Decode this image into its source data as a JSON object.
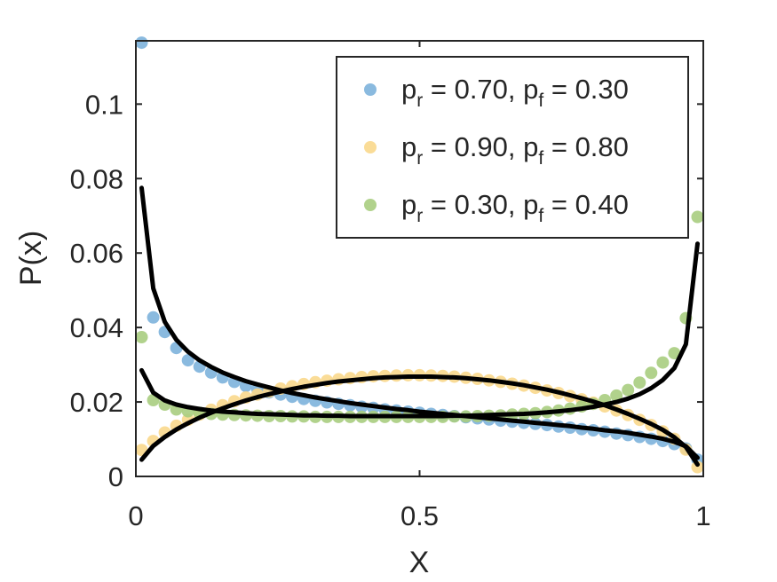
{
  "chart_data": {
    "type": "scatter",
    "xlabel": "X",
    "ylabel": "P(x)",
    "xlim": [
      0,
      1
    ],
    "ylim": [
      0,
      0.117
    ],
    "xticks": [
      "0",
      "0.5",
      "1"
    ],
    "yticks": [
      "0",
      "0.02",
      "0.04",
      "0.06",
      "0.08",
      "0.1"
    ],
    "legend_position": "top-right",
    "series": [
      {
        "legend": {
          "pr": "r",
          "pr_val": " = 0.70, p",
          "pf": "f",
          "pf_val": " = 0.30"
        },
        "color": "#7DB2DB",
        "x": [
          0.0102,
          0.0306,
          0.051,
          0.0714,
          0.0918,
          0.1122,
          0.1327,
          0.1531,
          0.1735,
          0.1939,
          0.2143,
          0.2347,
          0.2551,
          0.2755,
          0.2959,
          0.3163,
          0.3367,
          0.3571,
          0.3776,
          0.398,
          0.4184,
          0.4388,
          0.4592,
          0.4796,
          0.5,
          0.5204,
          0.5408,
          0.5612,
          0.5816,
          0.602,
          0.6224,
          0.6429,
          0.6633,
          0.6837,
          0.7041,
          0.7245,
          0.7449,
          0.7653,
          0.7857,
          0.8061,
          0.8265,
          0.8469,
          0.8673,
          0.8878,
          0.9082,
          0.9286,
          0.949,
          0.9694,
          0.9898
        ],
        "y": [
          0.1165,
          0.0427,
          0.0388,
          0.0345,
          0.0312,
          0.0295,
          0.0279,
          0.0266,
          0.0254,
          0.0243,
          0.0234,
          0.0226,
          0.022,
          0.0214,
          0.0208,
          0.0203,
          0.0199,
          0.0195,
          0.0191,
          0.0187,
          0.0184,
          0.018,
          0.0177,
          0.0174,
          0.0171,
          0.0168,
          0.0165,
          0.0162,
          0.0159,
          0.0156,
          0.0153,
          0.015,
          0.0147,
          0.0144,
          0.0141,
          0.0138,
          0.0134,
          0.0131,
          0.0127,
          0.0124,
          0.012,
          0.0115,
          0.0111,
          0.0106,
          0.0101,
          0.0095,
          0.0087,
          0.0075,
          0.0045
        ]
      },
      {
        "legend": {
          "pr": "r",
          "pr_val": " = 0.90, p",
          "pf": "f",
          "pf_val": " = 0.80"
        },
        "color": "#F9D88C",
        "x": [
          0.0102,
          0.0306,
          0.051,
          0.0714,
          0.0918,
          0.1122,
          0.1327,
          0.1531,
          0.1735,
          0.1939,
          0.2143,
          0.2347,
          0.2551,
          0.2755,
          0.2959,
          0.3163,
          0.3367,
          0.3571,
          0.3776,
          0.398,
          0.4184,
          0.4388,
          0.4592,
          0.4796,
          0.5,
          0.5204,
          0.5408,
          0.5612,
          0.5816,
          0.602,
          0.6224,
          0.6429,
          0.6633,
          0.6837,
          0.7041,
          0.7245,
          0.7449,
          0.7653,
          0.7857,
          0.8061,
          0.8265,
          0.8469,
          0.8673,
          0.8878,
          0.9082,
          0.9286,
          0.949,
          0.9694,
          0.9898
        ],
        "y": [
          0.0071,
          0.0095,
          0.0118,
          0.0136,
          0.0152,
          0.0166,
          0.0179,
          0.0191,
          0.0202,
          0.0212,
          0.022,
          0.0228,
          0.0236,
          0.0242,
          0.0248,
          0.0253,
          0.0257,
          0.0261,
          0.0264,
          0.0267,
          0.0269,
          0.027,
          0.0271,
          0.0272,
          0.0272,
          0.0271,
          0.027,
          0.0268,
          0.0265,
          0.0262,
          0.0258,
          0.0254,
          0.0249,
          0.0244,
          0.0238,
          0.0231,
          0.0224,
          0.0216,
          0.0207,
          0.0198,
          0.0188,
          0.0177,
          0.0165,
          0.0152,
          0.0138,
          0.0121,
          0.0101,
          0.0072,
          0.0025
        ]
      },
      {
        "legend": {
          "pr": "r",
          "pr_val": " = 0.30, p",
          "pf": "f",
          "pf_val": " = 0.40"
        },
        "color": "#A9CD80",
        "x": [
          0.0102,
          0.0306,
          0.051,
          0.0714,
          0.0918,
          0.1122,
          0.1327,
          0.1531,
          0.1735,
          0.1939,
          0.2143,
          0.2347,
          0.2551,
          0.2755,
          0.2959,
          0.3163,
          0.3367,
          0.3571,
          0.3776,
          0.398,
          0.4184,
          0.4388,
          0.4592,
          0.4796,
          0.5,
          0.5204,
          0.5408,
          0.5612,
          0.5816,
          0.602,
          0.6224,
          0.6429,
          0.6633,
          0.6837,
          0.7041,
          0.7245,
          0.7449,
          0.7653,
          0.7857,
          0.8061,
          0.8265,
          0.8469,
          0.8673,
          0.8878,
          0.9082,
          0.9286,
          0.949,
          0.9694,
          0.9898
        ],
        "y": [
          0.0374,
          0.0205,
          0.0193,
          0.018,
          0.0175,
          0.0171,
          0.0168,
          0.0166,
          0.0165,
          0.0164,
          0.0163,
          0.0162,
          0.0162,
          0.0161,
          0.0161,
          0.016,
          0.016,
          0.016,
          0.016,
          0.016,
          0.016,
          0.016,
          0.016,
          0.016,
          0.016,
          0.016,
          0.016,
          0.0161,
          0.0161,
          0.0162,
          0.0163,
          0.0164,
          0.0166,
          0.0168,
          0.017,
          0.0173,
          0.0177,
          0.0182,
          0.0188,
          0.0195,
          0.0205,
          0.0217,
          0.0232,
          0.0252,
          0.0278,
          0.0306,
          0.0331,
          0.0425,
          0.0697
        ]
      }
    ],
    "fit_curves": [
      {
        "x": [
          0.0102,
          0.0306,
          0.051,
          0.0714,
          0.0918,
          0.1122,
          0.1327,
          0.1531,
          0.1735,
          0.1939,
          0.2143,
          0.2347,
          0.2551,
          0.2755,
          0.2959,
          0.3163,
          0.3367,
          0.3571,
          0.3776,
          0.398,
          0.4184,
          0.4388,
          0.4592,
          0.4796,
          0.5,
          0.5204,
          0.5408,
          0.5612,
          0.5816,
          0.602,
          0.6224,
          0.6429,
          0.6633,
          0.6837,
          0.7041,
          0.7245,
          0.7449,
          0.7653,
          0.7857,
          0.8061,
          0.8265,
          0.8469,
          0.8673,
          0.8878,
          0.9082,
          0.9286,
          0.949,
          0.9694,
          0.9898
        ],
        "y": [
          0.0775,
          0.0505,
          0.0415,
          0.0367,
          0.0335,
          0.0312,
          0.0294,
          0.0279,
          0.0267,
          0.0256,
          0.0247,
          0.0239,
          0.0231,
          0.0224,
          0.0218,
          0.0212,
          0.0207,
          0.0202,
          0.0197,
          0.0193,
          0.0189,
          0.0185,
          0.0181,
          0.0178,
          0.0174,
          0.0171,
          0.0168,
          0.0165,
          0.0162,
          0.0159,
          0.0156,
          0.0153,
          0.015,
          0.0147,
          0.0144,
          0.0141,
          0.0138,
          0.0135,
          0.0131,
          0.0128,
          0.0124,
          0.0121,
          0.0117,
          0.0112,
          0.0107,
          0.0101,
          0.0093,
          0.0081,
          0.005
        ]
      },
      {
        "x": [
          0.0102,
          0.0306,
          0.051,
          0.0714,
          0.0918,
          0.1122,
          0.1327,
          0.1531,
          0.1735,
          0.1939,
          0.2143,
          0.2347,
          0.2551,
          0.2755,
          0.2959,
          0.3163,
          0.3367,
          0.3571,
          0.3776,
          0.398,
          0.4184,
          0.4388,
          0.4592,
          0.4796,
          0.5,
          0.5204,
          0.5408,
          0.5612,
          0.5816,
          0.602,
          0.6224,
          0.6429,
          0.6633,
          0.6837,
          0.7041,
          0.7245,
          0.7449,
          0.7653,
          0.7857,
          0.8061,
          0.8265,
          0.8469,
          0.8673,
          0.8878,
          0.9082,
          0.9286,
          0.949,
          0.9694,
          0.9898
        ],
        "y": [
          0.0045,
          0.0082,
          0.0106,
          0.0126,
          0.0143,
          0.0158,
          0.0171,
          0.0183,
          0.0194,
          0.0204,
          0.0213,
          0.0221,
          0.0228,
          0.0235,
          0.0241,
          0.0246,
          0.0251,
          0.0255,
          0.0258,
          0.0261,
          0.0264,
          0.0266,
          0.0267,
          0.0268,
          0.0268,
          0.0268,
          0.0267,
          0.0266,
          0.0264,
          0.0261,
          0.0258,
          0.0254,
          0.025,
          0.0245,
          0.0239,
          0.0233,
          0.0226,
          0.0218,
          0.021,
          0.0201,
          0.0191,
          0.018,
          0.0168,
          0.0155,
          0.0141,
          0.0125,
          0.0105,
          0.0079,
          0.0032
        ]
      },
      {
        "x": [
          0.0102,
          0.0306,
          0.051,
          0.0714,
          0.0918,
          0.1122,
          0.1327,
          0.1531,
          0.1735,
          0.1939,
          0.2143,
          0.2347,
          0.2551,
          0.2755,
          0.2959,
          0.3163,
          0.3367,
          0.3571,
          0.3776,
          0.398,
          0.4184,
          0.4388,
          0.4592,
          0.4796,
          0.5,
          0.5204,
          0.5408,
          0.5612,
          0.5816,
          0.602,
          0.6224,
          0.6429,
          0.6633,
          0.6837,
          0.7041,
          0.7245,
          0.7449,
          0.7653,
          0.7857,
          0.8061,
          0.8265,
          0.8469,
          0.8673,
          0.8878,
          0.9082,
          0.9286,
          0.949,
          0.9694,
          0.9898
        ],
        "y": [
          0.0285,
          0.0225,
          0.0204,
          0.0193,
          0.0186,
          0.0181,
          0.0177,
          0.0174,
          0.0172,
          0.017,
          0.0168,
          0.0167,
          0.0166,
          0.0165,
          0.0164,
          0.0164,
          0.0163,
          0.0163,
          0.0162,
          0.0162,
          0.0162,
          0.0162,
          0.0162,
          0.0162,
          0.0162,
          0.0162,
          0.0162,
          0.0163,
          0.0163,
          0.0164,
          0.0165,
          0.0166,
          0.0167,
          0.0168,
          0.017,
          0.0172,
          0.0175,
          0.0178,
          0.0182,
          0.0187,
          0.0193,
          0.02,
          0.0209,
          0.0221,
          0.0237,
          0.0259,
          0.0291,
          0.0355,
          0.0625
        ]
      }
    ]
  }
}
